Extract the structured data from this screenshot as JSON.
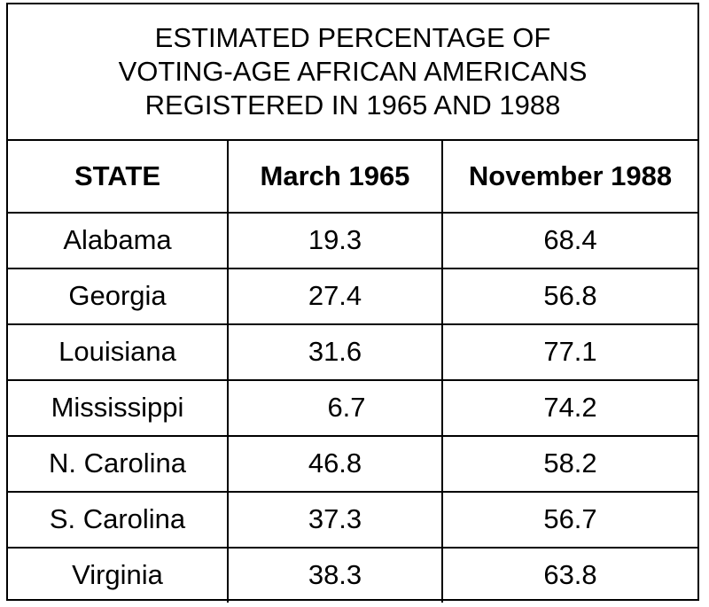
{
  "table": {
    "title_lines": [
      "ESTIMATED PERCENTAGE OF",
      "VOTING-AGE AFRICAN AMERICANS",
      "REGISTERED IN 1965 AND 1988"
    ],
    "headers": [
      "STATE",
      "March 1965",
      "November 1988"
    ],
    "rows": [
      {
        "state": "Alabama",
        "march_1965": "19.3",
        "november_1988": "68.4"
      },
      {
        "state": "Georgia",
        "march_1965": "27.4",
        "november_1988": "56.8"
      },
      {
        "state": "Louisiana",
        "march_1965": "31.6",
        "november_1988": "77.1"
      },
      {
        "state": "Mississippi",
        "march_1965": "6.7",
        "november_1988": "74.2"
      },
      {
        "state": "N. Carolina",
        "march_1965": "46.8",
        "november_1988": "58.2"
      },
      {
        "state": "S. Carolina",
        "march_1965": "37.3",
        "november_1988": "56.7"
      },
      {
        "state": "Virginia",
        "march_1965": "38.3",
        "november_1988": "63.8"
      }
    ]
  }
}
